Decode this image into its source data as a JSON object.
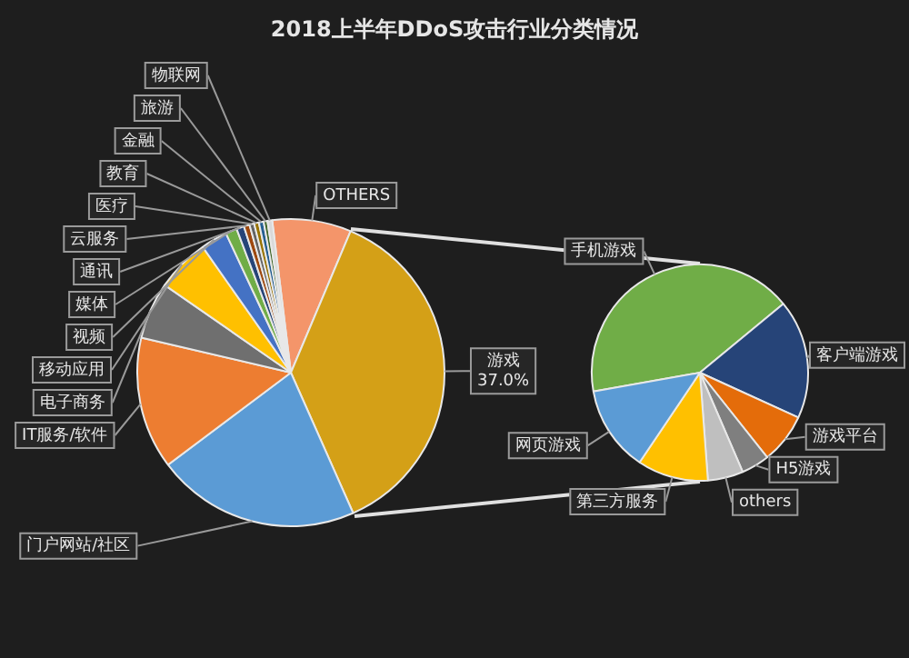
{
  "chart_data": [
    {
      "type": "pie",
      "title": "2018上半年DDoS攻击行业分类情况",
      "categories": [
        "OTHERS",
        "游戏",
        "门户网站/社区",
        "IT服务/软件",
        "电子商务",
        "移动应用",
        "视频",
        "媒体",
        "通讯",
        "云服务",
        "医疗",
        "教育",
        "金融",
        "旅游",
        "物联网"
      ],
      "values": [
        8.3,
        37.0,
        21.4,
        13.9,
        6.0,
        5.6,
        2.8,
        1.2,
        0.8,
        0.6,
        0.5,
        0.5,
        0.5,
        0.4,
        0.5
      ],
      "colors": [
        "#f4956a",
        "#d4a017",
        "#5b9bd5",
        "#ed7d31",
        "#6f6f6f",
        "#ffc000",
        "#4472c4",
        "#70ad47",
        "#264478",
        "#9e480e",
        "#636363",
        "#997300",
        "#255e91",
        "#43682b",
        "#d9d9d9"
      ],
      "value_labels": [
        null,
        "37.0%",
        null,
        null,
        null,
        null,
        null,
        null,
        null,
        null,
        null,
        null,
        null,
        null,
        null
      ]
    },
    {
      "type": "pie",
      "categories": [
        "手机游戏",
        "客户端游戏",
        "游戏平台",
        "H5游戏",
        "others",
        "第三方服务",
        "网页游戏"
      ],
      "values": [
        41.8,
        17.8,
        7.5,
        4.2,
        5.3,
        10.6,
        12.8
      ],
      "colors": [
        "#70ad47",
        "#264478",
        "#e46c0a",
        "#7f7f7f",
        "#bfbfbf",
        "#ffc000",
        "#5b9bd5"
      ]
    }
  ]
}
